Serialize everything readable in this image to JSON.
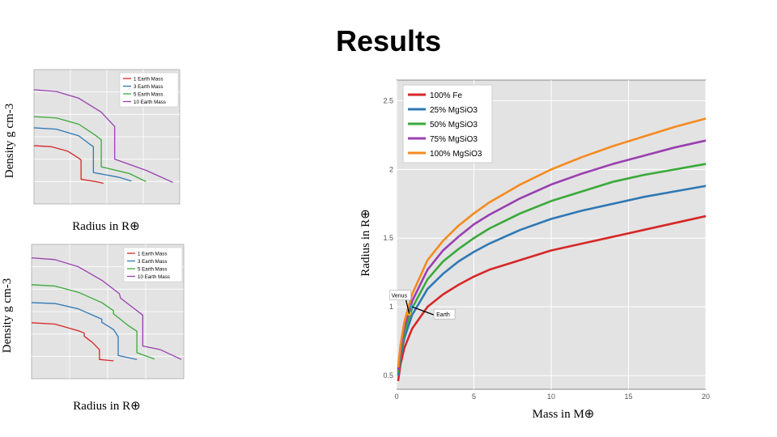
{
  "slide": {
    "title": "Results"
  },
  "colors": {
    "red": "#d62728",
    "blue": "#2f78b5",
    "green": "#3aa93a",
    "purple": "#9a3fb0",
    "orange": "#f58a1f",
    "plot_bg": "#e3e3e3",
    "grid": "#ffffff"
  },
  "chart_data": [
    {
      "id": "mass-radius",
      "type": "line",
      "xlabel": "Mass in M⊕",
      "ylabel": "Radius in R⊕",
      "xlim": [
        0,
        20
      ],
      "ylim": [
        0.4,
        2.65
      ],
      "xticks": [
        0,
        5,
        10,
        15,
        20
      ],
      "yticks": [
        0.5,
        1,
        1.5,
        2,
        2.5
      ],
      "xtick_labels": [
        "0",
        "5",
        "10",
        "15",
        "20"
      ],
      "ytick_labels": [
        "0.5",
        "1",
        "1.5",
        "2",
        "2.5"
      ],
      "grid": true,
      "legend_position": "top-left",
      "x": [
        0.1,
        0.25,
        0.5,
        1,
        2,
        3,
        4,
        5,
        6,
        8,
        10,
        12,
        14,
        16,
        18,
        20
      ],
      "series": [
        {
          "name": "100% Fe",
          "color_key": "red",
          "values": [
            0.46,
            0.58,
            0.7,
            0.84,
            1.0,
            1.09,
            1.16,
            1.22,
            1.27,
            1.34,
            1.41,
            1.46,
            1.51,
            1.56,
            1.61,
            1.66
          ]
        },
        {
          "name": "25% MgSiO3",
          "color_key": "blue",
          "values": [
            0.5,
            0.63,
            0.77,
            0.94,
            1.13,
            1.24,
            1.33,
            1.4,
            1.46,
            1.56,
            1.64,
            1.7,
            1.75,
            1.8,
            1.84,
            1.88
          ]
        },
        {
          "name": "50% MgSiO3",
          "color_key": "green",
          "values": [
            0.52,
            0.66,
            0.81,
            0.99,
            1.2,
            1.33,
            1.42,
            1.5,
            1.57,
            1.68,
            1.77,
            1.84,
            1.91,
            1.96,
            2.0,
            2.04
          ]
        },
        {
          "name": "75% MgSiO3",
          "color_key": "purple",
          "values": [
            0.54,
            0.69,
            0.85,
            1.04,
            1.27,
            1.41,
            1.51,
            1.6,
            1.67,
            1.79,
            1.89,
            1.97,
            2.04,
            2.1,
            2.16,
            2.21
          ]
        },
        {
          "name": "100% MgSiO3",
          "color_key": "orange",
          "values": [
            0.56,
            0.72,
            0.89,
            1.09,
            1.34,
            1.48,
            1.59,
            1.68,
            1.76,
            1.89,
            2.0,
            2.09,
            2.17,
            2.24,
            2.31,
            2.37
          ]
        }
      ],
      "annotations": [
        {
          "text": "Venus",
          "x": 0.815,
          "y": 0.95
        },
        {
          "text": "Earth",
          "x": 1.0,
          "y": 1.0
        }
      ]
    },
    {
      "id": "density-top",
      "type": "line",
      "xlabel": "Radius in R⊕",
      "ylabel": "Density g cm-3",
      "xlim": [
        0,
        1.3
      ],
      "ylim": [
        0,
        30
      ],
      "grid": true,
      "legend_position": "top-right",
      "series": [
        {
          "name": "1 Earth Mass",
          "color_key": "red",
          "x": [
            0,
            0.15,
            0.3,
            0.4,
            0.42,
            0.42,
            0.55,
            0.62
          ],
          "values": [
            13,
            12.8,
            11.8,
            10.2,
            9.8,
            5.5,
            5.0,
            4.6
          ]
        },
        {
          "name": "3 Earth Mass",
          "color_key": "blue",
          "x": [
            0,
            0.2,
            0.4,
            0.5,
            0.53,
            0.53,
            0.75,
            0.87
          ],
          "values": [
            17,
            16.7,
            15.2,
            13.3,
            12.8,
            7.0,
            6.0,
            5.1
          ]
        },
        {
          "name": "5 Earth Mass",
          "color_key": "green",
          "x": [
            0,
            0.2,
            0.4,
            0.55,
            0.6,
            0.6,
            0.85,
            1.0
          ],
          "values": [
            19.5,
            19.2,
            17.8,
            15.3,
            14.3,
            8.3,
            6.8,
            5.0
          ]
        },
        {
          "name": "10 Earth Mass",
          "color_key": "purple",
          "x": [
            0,
            0.2,
            0.4,
            0.6,
            0.67,
            0.72,
            0.72,
            1.0,
            1.24
          ],
          "values": [
            25.5,
            25.1,
            23.6,
            20.5,
            18.6,
            17.3,
            10.0,
            7.5,
            4.8
          ]
        }
      ]
    },
    {
      "id": "density-bottom",
      "type": "line",
      "xlabel": "Radius in R⊕",
      "ylabel": "Density g cm-3",
      "xlim": [
        0,
        1.3
      ],
      "ylim": [
        0,
        30
      ],
      "grid": true,
      "legend_position": "top-right",
      "series": [
        {
          "name": "1 Earth Mass",
          "color_key": "red",
          "x": [
            0,
            0.2,
            0.4,
            0.45,
            0.45,
            0.52,
            0.58,
            0.58,
            0.7
          ],
          "values": [
            12.5,
            12.2,
            10.7,
            10.2,
            9.5,
            8.1,
            6.5,
            4.3,
            4.0
          ]
        },
        {
          "name": "3 Earth Mass",
          "color_key": "blue",
          "x": [
            0,
            0.2,
            0.4,
            0.6,
            0.6,
            0.7,
            0.74,
            0.74,
            0.9
          ],
          "values": [
            17,
            16.8,
            15.6,
            13.3,
            12.6,
            11.0,
            9.4,
            5.2,
            4.3
          ]
        },
        {
          "name": "5 Earth Mass",
          "color_key": "green",
          "x": [
            0,
            0.2,
            0.4,
            0.6,
            0.7,
            0.7,
            0.83,
            0.9,
            0.9,
            1.05
          ],
          "values": [
            21,
            20.7,
            19.3,
            17.0,
            15.2,
            14.5,
            11.8,
            10.6,
            5.8,
            4.4
          ]
        },
        {
          "name": "10 Earth Mass",
          "color_key": "purple",
          "x": [
            0,
            0.2,
            0.4,
            0.6,
            0.75,
            0.76,
            0.95,
            0.95,
            1.1,
            1.28
          ],
          "values": [
            27,
            26.6,
            25.0,
            22.0,
            19.0,
            18.0,
            14.2,
            7.3,
            6.5,
            4.3
          ]
        }
      ]
    }
  ]
}
